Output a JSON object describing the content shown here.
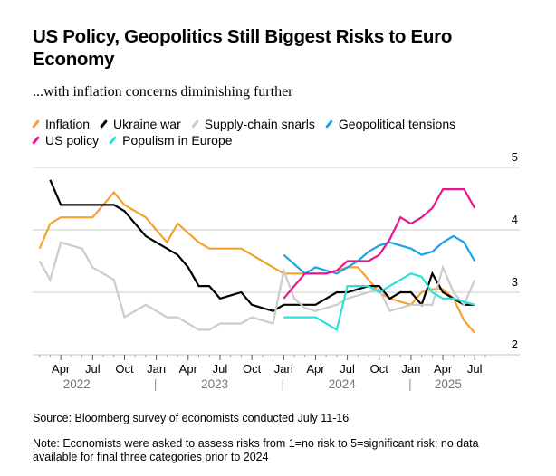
{
  "title": "US Policy, Geopolitics Still Biggest Risks to Euro Economy",
  "subtitle": "...with inflation concerns diminishing further",
  "source": "Source: Bloomberg survey of economists conducted July 11-16",
  "note": "Note: Economists were asked to assess risks from 1=no risk to 5=significant risk; no data available for final three categories prior to 2024",
  "legend": [
    {
      "name": "Inflation",
      "color": "#f5a031"
    },
    {
      "name": "Ukraine war",
      "color": "#000000"
    },
    {
      "name": "Supply-chain snarls",
      "color": "#cccccc"
    },
    {
      "name": "Geopolitical tensions",
      "color": "#1ba3e8"
    },
    {
      "name": "US policy",
      "color": "#e8168c"
    },
    {
      "name": "Populism in Europe",
      "color": "#2ee0d6"
    }
  ],
  "chart_data": {
    "type": "line",
    "title": "US Policy, Geopolitics Still Biggest Risks to Euro Economy",
    "subtitle": "...with inflation concerns diminishing further",
    "xlabel": "",
    "ylabel": "",
    "ylim": [
      2,
      5
    ],
    "yticks": [
      "5",
      "4",
      "3",
      "2"
    ],
    "ytick_values": [
      5,
      4,
      3,
      2
    ],
    "y_axis_side": "right",
    "grid": true,
    "legend_position": "top-left",
    "x_tick_labels": [
      "Apr",
      "Jul",
      "Oct",
      "Jan",
      "Apr",
      "Jul",
      "Oct",
      "Jan",
      "Apr",
      "Jul",
      "Oct",
      "Jan",
      "Apr",
      "Jul"
    ],
    "x_tick_months": [
      3,
      6,
      9,
      12,
      15,
      18,
      21,
      24,
      27,
      30,
      33,
      36,
      39,
      42
    ],
    "year_labels": [
      {
        "label": "2022",
        "month": 4.5
      },
      {
        "label": "2023",
        "month": 17.5
      },
      {
        "label": "2024",
        "month": 29.5
      },
      {
        "label": "2025",
        "month": 39.5
      }
    ],
    "year_separators": [
      12,
      24,
      36
    ],
    "x_month_range": [
      0,
      43
    ],
    "x_note": "month index 0 = Jan 2022",
    "series": [
      {
        "name": "Inflation",
        "color": "#f5a031",
        "x": [
          1,
          2,
          3,
          4,
          5,
          6,
          7,
          8,
          9,
          10,
          11,
          12,
          13,
          14,
          15,
          16,
          17,
          18,
          19,
          20,
          21,
          22,
          23,
          24,
          25,
          26,
          27,
          28,
          29,
          30,
          31,
          32,
          33,
          34,
          35,
          36,
          37,
          38,
          39,
          40,
          41,
          42
        ],
        "values": [
          3.7,
          4.1,
          4.2,
          4.2,
          4.2,
          4.2,
          4.4,
          4.6,
          4.4,
          4.3,
          4.2,
          4.0,
          3.8,
          4.1,
          3.95,
          3.8,
          3.7,
          3.7,
          3.7,
          3.7,
          3.6,
          3.5,
          3.4,
          3.3,
          3.3,
          3.3,
          3.3,
          3.3,
          3.35,
          3.4,
          3.4,
          3.2,
          3.0,
          2.9,
          2.85,
          2.8,
          3.0,
          3.05,
          3.05,
          2.9,
          2.55,
          2.35
        ]
      },
      {
        "name": "Ukraine war",
        "color": "#000000",
        "x": [
          2,
          3,
          4,
          5,
          6,
          7,
          8,
          9,
          10,
          11,
          12,
          13,
          14,
          15,
          16,
          17,
          18,
          19,
          20,
          21,
          22,
          23,
          24,
          25,
          26,
          27,
          28,
          29,
          30,
          31,
          32,
          33,
          34,
          35,
          36,
          37,
          38,
          39,
          40,
          41,
          42
        ],
        "values": [
          4.8,
          4.4,
          4.4,
          4.4,
          4.4,
          4.4,
          4.4,
          4.3,
          4.1,
          3.9,
          3.8,
          3.7,
          3.6,
          3.4,
          3.1,
          3.1,
          2.9,
          2.95,
          3.0,
          2.8,
          2.75,
          2.7,
          2.8,
          2.8,
          2.8,
          2.8,
          2.9,
          3.0,
          3.0,
          3.05,
          3.1,
          3.1,
          2.9,
          3.0,
          3.0,
          2.8,
          3.3,
          3.0,
          2.9,
          2.8,
          2.8
        ]
      },
      {
        "name": "Supply-chain snarls",
        "color": "#cccccc",
        "x": [
          1,
          2,
          3,
          4,
          5,
          6,
          7,
          8,
          9,
          10,
          11,
          12,
          13,
          14,
          15,
          16,
          17,
          18,
          19,
          20,
          21,
          22,
          23,
          24,
          25,
          26,
          27,
          28,
          29,
          30,
          31,
          32,
          33,
          34,
          35,
          36,
          37,
          38,
          39,
          40,
          41,
          42
        ],
        "values": [
          3.5,
          3.2,
          3.8,
          3.75,
          3.7,
          3.4,
          3.3,
          3.2,
          2.6,
          2.7,
          2.8,
          2.7,
          2.6,
          2.6,
          2.5,
          2.4,
          2.4,
          2.5,
          2.5,
          2.5,
          2.6,
          2.55,
          2.5,
          3.35,
          2.9,
          2.75,
          2.7,
          2.75,
          2.8,
          2.9,
          2.95,
          3.0,
          3.05,
          2.7,
          2.75,
          2.8,
          2.8,
          2.8,
          3.4,
          3.0,
          2.8,
          3.2
        ]
      },
      {
        "name": "Geopolitical tensions",
        "color": "#1ba3e8",
        "x": [
          24,
          25,
          26,
          27,
          28,
          29,
          30,
          31,
          32,
          33,
          34,
          35,
          36,
          37,
          38,
          39,
          40,
          41,
          42
        ],
        "values": [
          3.6,
          3.45,
          3.3,
          3.4,
          3.35,
          3.3,
          3.4,
          3.5,
          3.65,
          3.75,
          3.8,
          3.75,
          3.7,
          3.6,
          3.65,
          3.8,
          3.9,
          3.8,
          3.5
        ]
      },
      {
        "name": "US policy",
        "color": "#e8168c",
        "x": [
          24,
          25,
          26,
          27,
          28,
          29,
          30,
          31,
          32,
          33,
          34,
          35,
          36,
          37,
          38,
          39,
          40,
          41,
          42
        ],
        "values": [
          2.9,
          3.1,
          3.3,
          3.3,
          3.3,
          3.35,
          3.5,
          3.5,
          3.5,
          3.6,
          3.85,
          4.2,
          4.1,
          4.2,
          4.35,
          4.65,
          4.65,
          4.65,
          4.35
        ]
      },
      {
        "name": "Populism in Europe",
        "color": "#2ee0d6",
        "x": [
          24,
          25,
          26,
          27,
          28,
          29,
          30,
          31,
          32,
          33,
          34,
          35,
          36,
          37,
          38,
          39,
          40,
          41,
          42
        ],
        "values": [
          2.6,
          2.6,
          2.6,
          2.6,
          2.5,
          2.4,
          3.1,
          3.1,
          3.1,
          3.0,
          3.1,
          3.2,
          3.3,
          3.25,
          3.0,
          2.9,
          2.9,
          2.85,
          2.8
        ]
      }
    ]
  }
}
